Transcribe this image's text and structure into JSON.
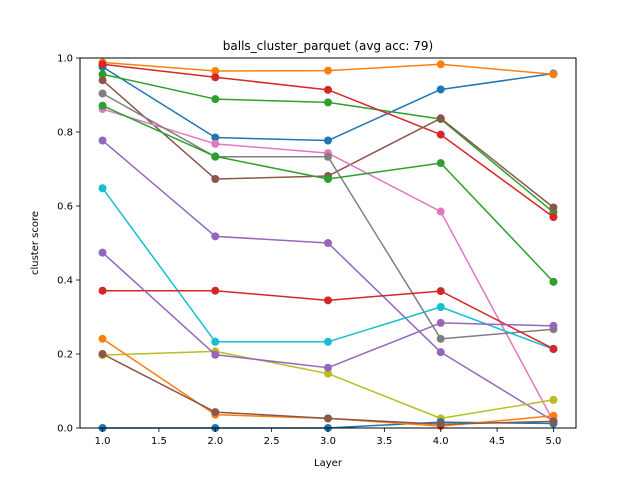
{
  "chart_data": {
    "type": "line",
    "title": "balls_cluster_parquet (avg acc: 79)",
    "xlabel": "Layer",
    "ylabel": "cluster score",
    "xlim": [
      0.8,
      5.2
    ],
    "ylim": [
      0.0,
      1.0
    ],
    "grid": false,
    "x": [
      1,
      2,
      3,
      4,
      5
    ],
    "x_ticks": [
      "1.0",
      "1.5",
      "2.0",
      "2.5",
      "3.0",
      "3.5",
      "4.0",
      "4.5",
      "5.0"
    ],
    "y_ticks": [
      "0.0",
      "0.2",
      "0.4",
      "0.6",
      "0.8",
      "1.0"
    ],
    "series": [
      {
        "color": "#1f77b4",
        "values": [
          0.976,
          0.785,
          0.777,
          0.915,
          0.958
        ]
      },
      {
        "color": "#ff7f0e",
        "values": [
          0.988,
          0.965,
          0.966,
          0.983,
          0.956
        ]
      },
      {
        "color": "#2ca02c",
        "values": [
          0.956,
          0.889,
          0.88,
          0.835,
          0.583
        ]
      },
      {
        "color": "#d62728",
        "values": [
          0.983,
          0.948,
          0.914,
          0.793,
          0.57
        ]
      },
      {
        "color": "#9467bd",
        "values": [
          0.777,
          0.518,
          0.5,
          0.205,
          0.019
        ]
      },
      {
        "color": "#8c564b",
        "values": [
          0.94,
          0.673,
          0.681,
          0.837,
          0.596
        ]
      },
      {
        "color": "#e377c2",
        "values": [
          0.862,
          0.768,
          0.743,
          0.585,
          0.018
        ]
      },
      {
        "color": "#7f7f7f",
        "values": [
          0.904,
          0.733,
          0.733,
          0.241,
          0.267
        ]
      },
      {
        "color": "#bcbd22",
        "values": [
          0.197,
          0.207,
          0.147,
          0.026,
          0.076
        ]
      },
      {
        "color": "#17becf",
        "values": [
          0.648,
          0.233,
          0.233,
          0.327,
          0.213
        ]
      },
      {
        "color": "#1f77b4",
        "values": [
          0.0,
          0.0,
          0.0,
          0.016,
          0.012
        ]
      },
      {
        "color": "#ff7f0e",
        "values": [
          0.241,
          0.036,
          0.026,
          0.005,
          0.033
        ]
      },
      {
        "color": "#2ca02c",
        "values": [
          0.871,
          0.734,
          0.673,
          0.716,
          0.395
        ]
      },
      {
        "color": "#d62728",
        "values": [
          0.371,
          0.371,
          0.345,
          0.37,
          0.214
        ]
      },
      {
        "color": "#9467bd",
        "values": [
          0.474,
          0.198,
          0.163,
          0.284,
          0.276
        ]
      },
      {
        "color": "#8c564b",
        "values": [
          0.2,
          0.043,
          0.026,
          0.01,
          0.018
        ]
      }
    ]
  }
}
